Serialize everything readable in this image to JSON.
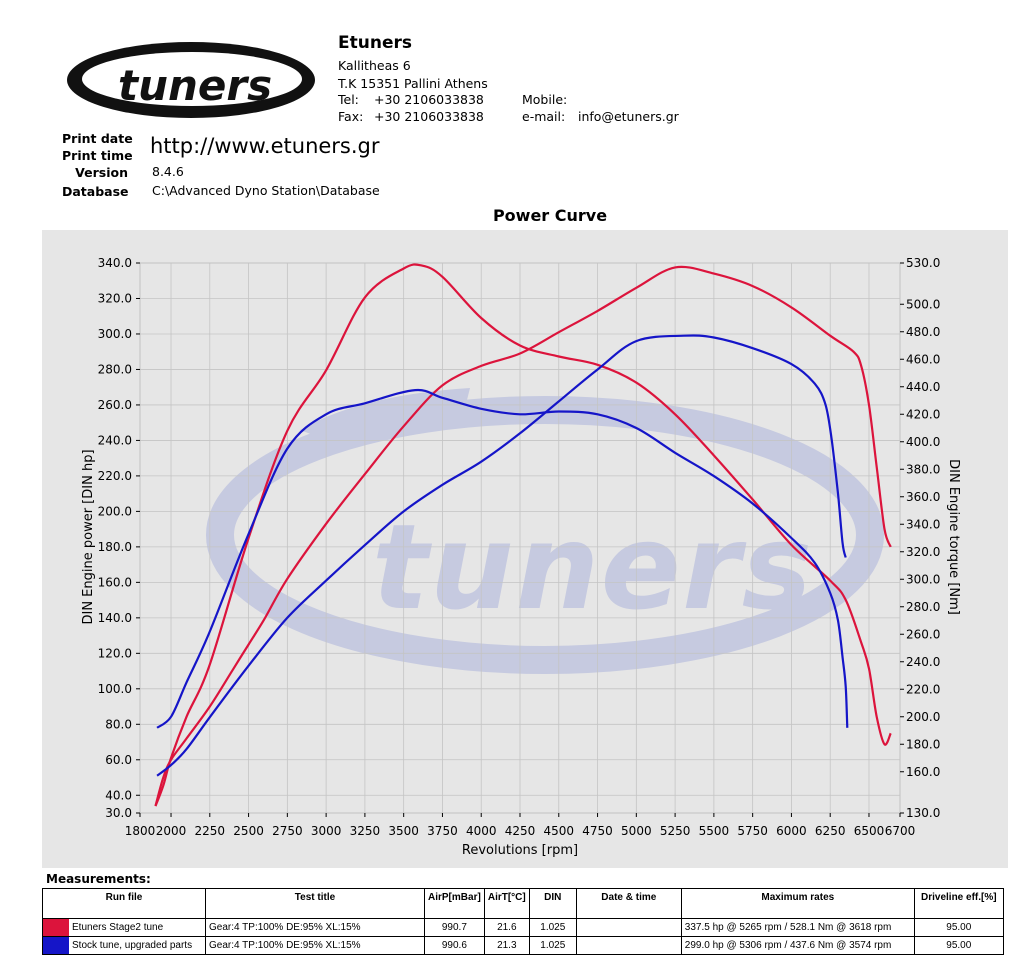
{
  "header": {
    "logo_text": "tuners",
    "company": "Etuners",
    "address1": "Kallitheas 6",
    "address2": "T.K 15351 Pallini Athens",
    "tel_label": "Tel:",
    "tel": "+30 2106033838",
    "fax_label": "Fax:",
    "fax": "+30 2106033838",
    "mobile_label": "Mobile:",
    "email_label": "e-mail:",
    "email": "info@etuners.gr",
    "url": "http://www.etuners.gr"
  },
  "meta": {
    "print_date_label": "Print date",
    "print_time_label": "Print time",
    "version_label": "Version",
    "version": "8.4.6",
    "database_label": "Database",
    "database": "C:\\Advanced Dyno Station\\Database"
  },
  "colors": {
    "stage2": "#dc143c",
    "stock": "#1515c8",
    "plot_bg": "#e6e6e6",
    "watermark": "#c6cae0"
  },
  "chart_data": {
    "type": "line",
    "title": "Power Curve",
    "xlabel": "Revolutions [rpm]",
    "ylabel_left": "DIN Engine power [DIN hp]",
    "ylabel_right": "DIN Engine torque [Nm]",
    "xlim": [
      1800,
      6700
    ],
    "ylim_left": [
      30,
      340
    ],
    "ylim_right": [
      130,
      530
    ],
    "x_ticks": [
      1800,
      2000,
      2250,
      2500,
      2750,
      3000,
      3250,
      3500,
      3750,
      4000,
      4250,
      4500,
      4750,
      5000,
      5250,
      5500,
      5750,
      6000,
      6250,
      6500,
      6700
    ],
    "x_tick_labels": [
      "1800",
      "2000",
      "2250",
      "2500",
      "2750",
      "3000",
      "3250",
      "3500",
      "3750",
      "4000",
      "4250",
      "4500",
      "4750",
      "5000",
      "5250",
      "5500",
      "5750",
      "6000",
      "6250",
      "6500",
      "6700"
    ],
    "y_ticks_left": [
      30,
      40,
      60,
      80,
      100,
      120,
      140,
      160,
      180,
      200,
      220,
      240,
      260,
      280,
      300,
      320,
      340
    ],
    "y_tick_labels_left": [
      "30.0",
      "40.0",
      "60.0",
      "80.0",
      "100.0",
      "120.0",
      "140.0",
      "160.0",
      "180.0",
      "200.0",
      "220.0",
      "240.0",
      "260.0",
      "280.0",
      "300.0",
      "320.0",
      "340.0"
    ],
    "y_ticks_right": [
      130,
      160,
      180,
      200,
      220,
      240,
      260,
      280,
      300,
      320,
      340,
      360,
      380,
      400,
      420,
      440,
      460,
      480,
      500,
      530
    ],
    "y_tick_labels_right": [
      "130.0",
      "160.0",
      "180.0",
      "200.0",
      "220.0",
      "240.0",
      "260.0",
      "280.0",
      "300.0",
      "320.0",
      "340.0",
      "360.0",
      "380.0",
      "400.0",
      "420.0",
      "440.0",
      "460.0",
      "480.0",
      "500.0",
      "530.0"
    ],
    "grid": true,
    "series": [
      {
        "name": "Etuners Stage2 tune",
        "quantity": "power",
        "axis": "left",
        "color": "#dc143c",
        "points": [
          [
            1900,
            34
          ],
          [
            1950,
            50
          ],
          [
            2000,
            60
          ],
          [
            2100,
            72
          ],
          [
            2250,
            90
          ],
          [
            2400,
            111
          ],
          [
            2500,
            125
          ],
          [
            2600,
            139
          ],
          [
            2750,
            162
          ],
          [
            3000,
            193
          ],
          [
            3250,
            221
          ],
          [
            3500,
            248
          ],
          [
            3750,
            271
          ],
          [
            4000,
            282
          ],
          [
            4250,
            289
          ],
          [
            4500,
            301
          ],
          [
            4750,
            313
          ],
          [
            5000,
            326
          ],
          [
            5250,
            337.5
          ],
          [
            5500,
            334
          ],
          [
            5750,
            327
          ],
          [
            6000,
            315
          ],
          [
            6250,
            299
          ],
          [
            6400,
            290
          ],
          [
            6450,
            282
          ],
          [
            6500,
            260
          ],
          [
            6550,
            225
          ],
          [
            6600,
            190
          ],
          [
            6640,
            180
          ]
        ]
      },
      {
        "name": "Etuners Stage2 tune",
        "quantity": "torque",
        "axis": "right",
        "color": "#dc143c",
        "points": [
          [
            1900,
            135
          ],
          [
            1950,
            150
          ],
          [
            2000,
            170
          ],
          [
            2100,
            200
          ],
          [
            2250,
            238
          ],
          [
            2500,
            330
          ],
          [
            2750,
            408
          ],
          [
            3000,
            452
          ],
          [
            3250,
            505
          ],
          [
            3500,
            526
          ],
          [
            3618,
            528.1
          ],
          [
            3750,
            520
          ],
          [
            4000,
            490
          ],
          [
            4250,
            470
          ],
          [
            4500,
            462
          ],
          [
            4750,
            456
          ],
          [
            5000,
            443
          ],
          [
            5250,
            420
          ],
          [
            5500,
            390
          ],
          [
            5750,
            358
          ],
          [
            6000,
            325
          ],
          [
            6250,
            299
          ],
          [
            6350,
            285
          ],
          [
            6450,
            254
          ],
          [
            6500,
            235
          ],
          [
            6550,
            200
          ],
          [
            6600,
            180
          ],
          [
            6640,
            188
          ]
        ]
      },
      {
        "name": "Stock tune, upgraded parts",
        "quantity": "power",
        "axis": "left",
        "color": "#1515c8",
        "points": [
          [
            1910,
            51
          ],
          [
            2000,
            57
          ],
          [
            2100,
            66
          ],
          [
            2250,
            84
          ],
          [
            2500,
            113
          ],
          [
            2750,
            140
          ],
          [
            3000,
            161
          ],
          [
            3250,
            181
          ],
          [
            3500,
            200
          ],
          [
            3750,
            215
          ],
          [
            4000,
            228
          ],
          [
            4250,
            244
          ],
          [
            4500,
            262
          ],
          [
            4750,
            280
          ],
          [
            5000,
            296
          ],
          [
            5306,
            299.0
          ],
          [
            5500,
            298
          ],
          [
            5750,
            292
          ],
          [
            6000,
            283
          ],
          [
            6150,
            272
          ],
          [
            6220,
            260
          ],
          [
            6260,
            240
          ],
          [
            6300,
            210
          ],
          [
            6330,
            182
          ],
          [
            6350,
            174
          ]
        ]
      },
      {
        "name": "Stock tune, upgraded parts",
        "quantity": "torque",
        "axis": "right",
        "color": "#1515c8",
        "points": [
          [
            1910,
            192
          ],
          [
            2000,
            200
          ],
          [
            2100,
            225
          ],
          [
            2250,
            262
          ],
          [
            2500,
            333
          ],
          [
            2750,
            395
          ],
          [
            3000,
            420
          ],
          [
            3250,
            428
          ],
          [
            3574,
            437.6
          ],
          [
            3750,
            432
          ],
          [
            4000,
            424
          ],
          [
            4250,
            420
          ],
          [
            4500,
            422
          ],
          [
            4750,
            420
          ],
          [
            5000,
            410
          ],
          [
            5250,
            392
          ],
          [
            5500,
            375
          ],
          [
            5750,
            355
          ],
          [
            6000,
            330
          ],
          [
            6150,
            312
          ],
          [
            6250,
            290
          ],
          [
            6300,
            270
          ],
          [
            6330,
            243
          ],
          [
            6350,
            222
          ],
          [
            6360,
            192
          ]
        ]
      }
    ]
  },
  "measurements": {
    "title": "Measurements:",
    "headers": [
      "Run file",
      "Test title",
      "AirP[mBar]",
      "AirT[°C]",
      "DIN",
      "Date & time",
      "Maximum rates",
      "Driveline eff.[%]"
    ],
    "rows": [
      {
        "color": "#dc143c",
        "run_file": "Etuners Stage2 tune",
        "test_title": "Gear:4 TP:100% DE:95% XL:15%",
        "airp": "990.7",
        "airt": "21.6",
        "din": "1.025",
        "datetime": "",
        "max_rates": "337.5 hp @ 5265 rpm / 528.1 Nm @ 3618 rpm",
        "eff": "95.00"
      },
      {
        "color": "#1515c8",
        "run_file": "Stock tune, upgraded parts",
        "test_title": "Gear:4 TP:100% DE:95% XL:15%",
        "airp": "990.6",
        "airt": "21.3",
        "din": "1.025",
        "datetime": "",
        "max_rates": "299.0 hp @ 5306 rpm / 437.6 Nm @ 3574 rpm",
        "eff": "95.00"
      }
    ]
  }
}
